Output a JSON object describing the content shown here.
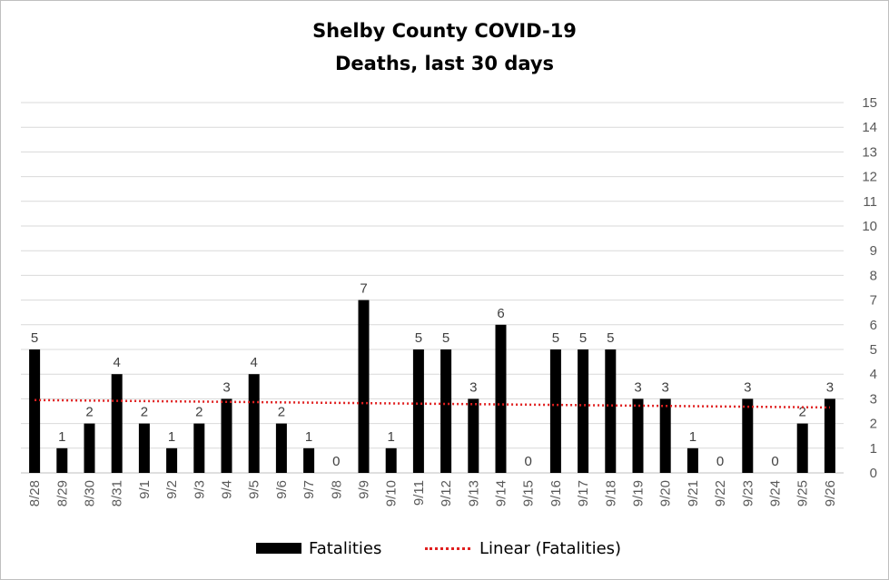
{
  "chart_data": {
    "type": "bar",
    "title": "Shelby County COVID-19",
    "subtitle": "Deaths, last 30 days",
    "categories": [
      "8/28",
      "8/29",
      "8/30",
      "8/31",
      "9/1",
      "9/2",
      "9/3",
      "9/4",
      "9/5",
      "9/6",
      "9/7",
      "9/8",
      "9/9",
      "9/10",
      "9/11",
      "9/12",
      "9/13",
      "9/14",
      "9/15",
      "9/16",
      "9/17",
      "9/18",
      "9/19",
      "9/20",
      "9/21",
      "9/22",
      "9/23",
      "9/24",
      "9/25",
      "9/26"
    ],
    "series": [
      {
        "name": "Fatalities",
        "values": [
          5,
          1,
          2,
          4,
          2,
          1,
          2,
          3,
          4,
          2,
          1,
          0,
          7,
          1,
          5,
          5,
          3,
          6,
          0,
          5,
          5,
          5,
          3,
          3,
          1,
          0,
          3,
          0,
          2,
          3
        ],
        "color": "#000000"
      }
    ],
    "trendline": {
      "name": "Linear (Fatalities)",
      "type": "linear",
      "color": "#e02020",
      "style": "dotted",
      "start": 2.95,
      "end": 2.65
    },
    "ylim": [
      0,
      15
    ],
    "yticks": [
      "0",
      "1",
      "2",
      "3",
      "4",
      "5",
      "6",
      "7",
      "8",
      "9",
      "10",
      "11",
      "12",
      "13",
      "14",
      "15"
    ],
    "y_axis_side": "right",
    "data_labels": true,
    "grid": true,
    "legend_position": "bottom"
  }
}
